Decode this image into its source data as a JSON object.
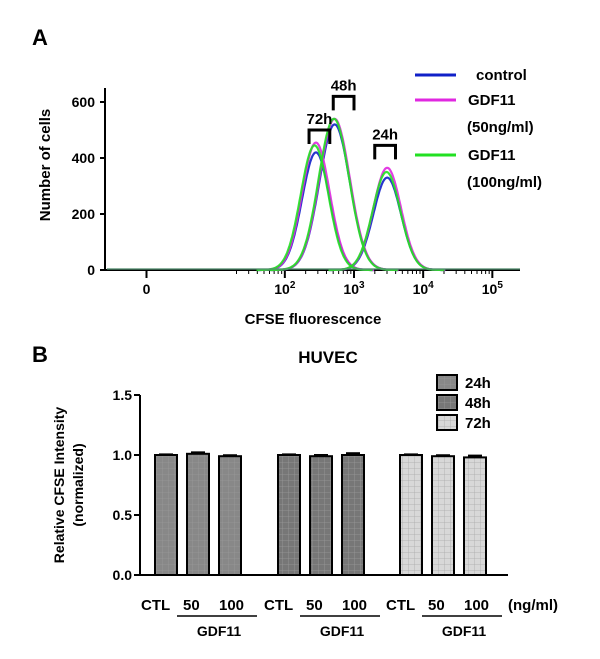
{
  "panel_a": {
    "label": "A",
    "chart_data": {
      "type": "line",
      "title": "",
      "xlabel": "CFSE fluorescence",
      "ylabel": "Number of cells",
      "xscale": "biexponential",
      "xlim": [
        -0.6,
        5.4
      ],
      "ylim": [
        0,
        650
      ],
      "x_tick_labels": [
        {
          "label": "0",
          "base": "0",
          "exp": "",
          "value": 0
        },
        {
          "label": "10^2",
          "base": "10",
          "exp": "2",
          "value": 2
        },
        {
          "label": "10^3",
          "base": "10",
          "exp": "3",
          "value": 3
        },
        {
          "label": "10^4",
          "base": "10",
          "exp": "4",
          "value": 4
        },
        {
          "label": "10^5",
          "base": "10",
          "exp": "5",
          "value": 5
        }
      ],
      "y_tick_labels": [
        "0",
        "200",
        "400",
        "600"
      ],
      "y_ticks": [
        0,
        200,
        400,
        600
      ],
      "legend": {
        "position": "top-right",
        "entries": [
          {
            "label": "control",
            "color": "#1020c8"
          },
          {
            "label": "GDF11",
            "label2": "(50ng/ml)",
            "color": "#e028e0"
          },
          {
            "label": "GDF11",
            "label2": "(100ng/ml)",
            "color": "#22e022"
          }
        ]
      },
      "annotations": [
        {
          "text": "72h",
          "x_range": [
            2.35,
            2.65
          ],
          "y": 500
        },
        {
          "text": "48h",
          "x_range": [
            2.7,
            3.0
          ],
          "y": 620
        },
        {
          "text": "24h",
          "x_range": [
            3.3,
            3.6
          ],
          "y": 445
        }
      ],
      "series": [
        {
          "name": "control",
          "color": "#1020c8",
          "peaks": [
            {
              "label": "72h",
              "mu": 2.45,
              "sigma": 0.2,
              "height": 420
            },
            {
              "label": "48h",
              "mu": 2.72,
              "sigma": 0.22,
              "height": 520
            },
            {
              "label": "24h",
              "mu": 3.48,
              "sigma": 0.2,
              "height": 330
            }
          ]
        },
        {
          "name": "GDF11 (50ng/ml)",
          "color": "#e028e0",
          "peaks": [
            {
              "label": "72h",
              "mu": 2.45,
              "sigma": 0.2,
              "height": 455
            },
            {
              "label": "48h",
              "mu": 2.72,
              "sigma": 0.22,
              "height": 540
            },
            {
              "label": "24h",
              "mu": 3.48,
              "sigma": 0.2,
              "height": 365
            }
          ]
        },
        {
          "name": "GDF11 (100ng/ml)",
          "color": "#22e022",
          "peaks": [
            {
              "label": "72h",
              "mu": 2.43,
              "sigma": 0.2,
              "height": 445
            },
            {
              "label": "48h",
              "mu": 2.71,
              "sigma": 0.22,
              "height": 540
            },
            {
              "label": "24h",
              "mu": 3.47,
              "sigma": 0.2,
              "height": 350
            }
          ]
        }
      ]
    }
  },
  "panel_b": {
    "label": "B",
    "chart_data": {
      "type": "bar",
      "title": "HUVEC",
      "xlabel": "",
      "ylabel_line1": "Relative CFSE Intensity",
      "ylabel_line2": "(normalized)",
      "ylim": [
        0,
        1.5
      ],
      "y_ticks": [
        0,
        0.5,
        1.0,
        1.5
      ],
      "y_tick_labels": [
        "0.0",
        "0.5",
        "1.0",
        "1.5"
      ],
      "categories": [
        "CTL",
        "50",
        "100"
      ],
      "unit_label": "(ng/ml)",
      "group_label": "GDF11",
      "legend": {
        "position": "top-right",
        "entries": [
          {
            "label": "24h",
            "fill": "#888888"
          },
          {
            "label": "48h",
            "fill": "#777777"
          },
          {
            "label": "72h",
            "fill": "#d8d8d8"
          }
        ]
      },
      "series": [
        {
          "name": "24h",
          "fill": "#888888",
          "values": [
            1.0,
            1.01,
            0.99
          ],
          "errors": [
            0.005,
            0.012,
            0.008
          ]
        },
        {
          "name": "48h",
          "fill": "#777777",
          "values": [
            1.0,
            0.99,
            1.0
          ],
          "errors": [
            0.005,
            0.01,
            0.015
          ]
        },
        {
          "name": "72h",
          "fill": "#d8d8d8",
          "values": [
            1.0,
            0.99,
            0.98
          ],
          "errors": [
            0.005,
            0.008,
            0.015
          ]
        }
      ]
    }
  }
}
